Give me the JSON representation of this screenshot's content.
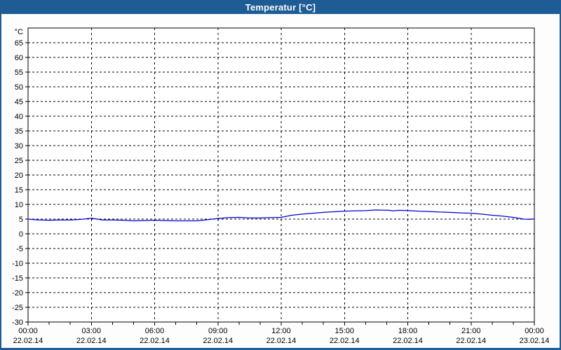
{
  "window": {
    "title": "Temperatur [°C]",
    "colors": {
      "titlebar": "#1d5c94",
      "title_text": "#ffffff",
      "content_bg": "#fcfdfc",
      "plot_bg": "#ffffff",
      "grid": "#000000",
      "axis_text": "#000000",
      "line": "#0000cc"
    }
  },
  "chart_data": {
    "type": "line",
    "title": "Temperatur [°C]",
    "ylabel": "°C",
    "xlabel": "",
    "ylim": [
      -30,
      70
    ],
    "y_tick_step": 5,
    "y_tick_labels": [
      65,
      60,
      55,
      50,
      45,
      40,
      35,
      30,
      25,
      20,
      15,
      10,
      5,
      0,
      -5,
      -10,
      -15,
      -20,
      -25,
      -30
    ],
    "grid": "dashed",
    "legend": "none",
    "x_hours_range": [
      0,
      24
    ],
    "x_minor_tick_hours": 1,
    "x_ticks": [
      {
        "hour": 0,
        "time": "00:00",
        "date": "22.02.14"
      },
      {
        "hour": 3,
        "time": "03:00",
        "date": "22.02.14"
      },
      {
        "hour": 6,
        "time": "06:00",
        "date": "22.02.14"
      },
      {
        "hour": 9,
        "time": "09:00",
        "date": "22.02.14"
      },
      {
        "hour": 12,
        "time": "12:00",
        "date": "22.02.14"
      },
      {
        "hour": 15,
        "time": "15:00",
        "date": "22.02.14"
      },
      {
        "hour": 18,
        "time": "18:00",
        "date": "22.02.14"
      },
      {
        "hour": 21,
        "time": "21:00",
        "date": "22.02.14"
      },
      {
        "hour": 24,
        "time": "00:00",
        "date": "23.02.14"
      }
    ],
    "series": [
      {
        "name": "Temperatur",
        "color": "#0000cc",
        "points": [
          [
            0,
            5.0
          ],
          [
            0.5,
            4.7
          ],
          [
            1,
            4.6
          ],
          [
            1.5,
            4.7
          ],
          [
            2,
            4.7
          ],
          [
            2.5,
            4.9
          ],
          [
            3,
            5.3
          ],
          [
            3.3,
            5.0
          ],
          [
            3.5,
            4.7
          ],
          [
            4,
            4.7
          ],
          [
            4.5,
            4.6
          ],
          [
            5,
            4.4
          ],
          [
            5.5,
            4.5
          ],
          [
            6,
            4.6
          ],
          [
            6.5,
            4.5
          ],
          [
            7,
            4.4
          ],
          [
            7.5,
            4.4
          ],
          [
            8,
            4.4
          ],
          [
            8.5,
            4.8
          ],
          [
            9,
            5.2
          ],
          [
            9.5,
            5.5
          ],
          [
            10,
            5.6
          ],
          [
            10.5,
            5.4
          ],
          [
            11,
            5.4
          ],
          [
            11.5,
            5.5
          ],
          [
            12,
            5.6
          ],
          [
            12.5,
            6.3
          ],
          [
            13,
            6.7
          ],
          [
            13.5,
            7.0
          ],
          [
            14,
            7.3
          ],
          [
            14.5,
            7.5
          ],
          [
            15,
            7.7
          ],
          [
            15.5,
            7.8
          ],
          [
            16,
            7.9
          ],
          [
            16.5,
            8.1
          ],
          [
            17.1,
            8.0
          ],
          [
            17.3,
            7.8
          ],
          [
            17.6,
            8.0
          ],
          [
            18,
            7.9
          ],
          [
            18.5,
            7.7
          ],
          [
            19,
            7.6
          ],
          [
            19.5,
            7.4
          ],
          [
            20,
            7.3
          ],
          [
            20.5,
            7.1
          ],
          [
            21,
            7.0
          ],
          [
            21.5,
            6.7
          ],
          [
            22,
            6.3
          ],
          [
            22.5,
            6.0
          ],
          [
            23,
            5.6
          ],
          [
            23.5,
            5.0
          ],
          [
            23.8,
            4.9
          ],
          [
            24,
            5.1
          ]
        ]
      }
    ]
  }
}
